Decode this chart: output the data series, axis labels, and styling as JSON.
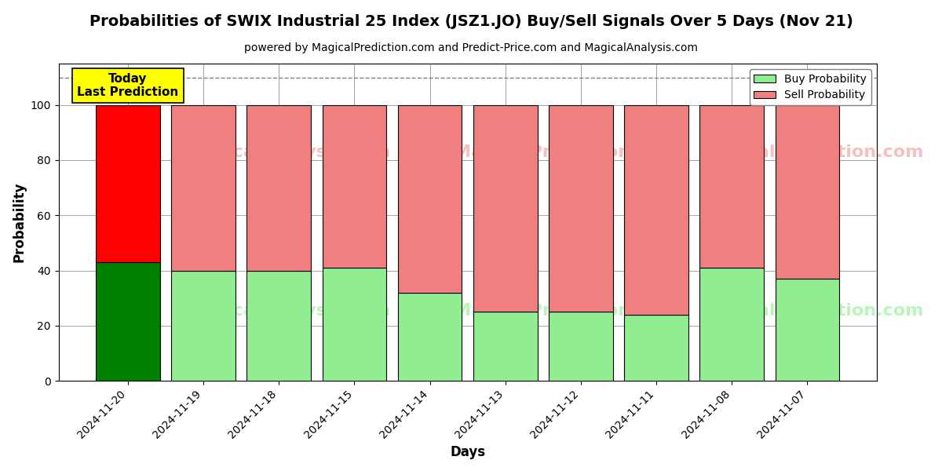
{
  "title": "Probabilities of SWIX Industrial 25 Index (JSZ1.JO) Buy/Sell Signals Over 5 Days (Nov 21)",
  "subtitle": "powered by MagicalPrediction.com and Predict-Price.com and MagicalAnalysis.com",
  "xlabel": "Days",
  "ylabel": "Probability",
  "categories": [
    "2024-11-20",
    "2024-11-19",
    "2024-11-18",
    "2024-11-15",
    "2024-11-14",
    "2024-11-13",
    "2024-11-12",
    "2024-11-11",
    "2024-11-08",
    "2024-11-07"
  ],
  "buy_values": [
    43,
    40,
    40,
    41,
    32,
    25,
    25,
    24,
    41,
    37
  ],
  "sell_values": [
    57,
    60,
    60,
    59,
    68,
    75,
    75,
    76,
    59,
    63
  ],
  "today_buy_color": "#008000",
  "today_sell_color": "#ff0000",
  "buy_color": "#90ee90",
  "sell_color": "#f08080",
  "today_label_bg": "#ffff00",
  "today_label_text": "Today\nLast Prediction",
  "dashed_line_y": 110,
  "ylim": [
    0,
    115
  ],
  "yticks": [
    0,
    20,
    40,
    60,
    80,
    100
  ],
  "legend_buy": "Buy Probability",
  "legend_sell": "Sell Probability",
  "background_color": "#ffffff",
  "bar_edge_color": "#000000",
  "bar_width": 0.85
}
